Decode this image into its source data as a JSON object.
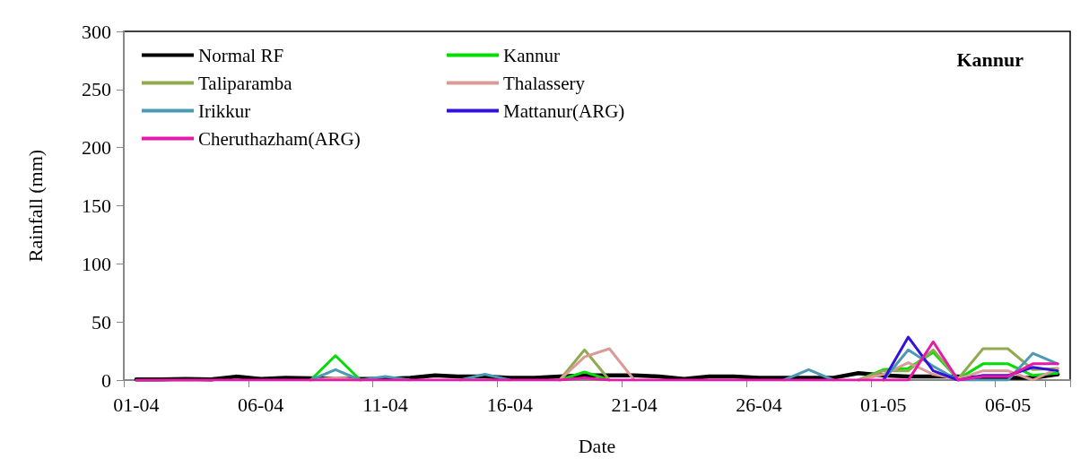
{
  "chart_data": {
    "type": "line",
    "title": "Kannur",
    "xlabel": "Date",
    "ylabel": "Rainfall (mm)",
    "categories": [
      "01-04",
      null,
      null,
      null,
      null,
      "06-04",
      null,
      null,
      null,
      null,
      "11-04",
      null,
      null,
      null,
      null,
      "16-04",
      null,
      null,
      null,
      null,
      "21-04",
      null,
      null,
      null,
      null,
      "26-04",
      null,
      null,
      null,
      null,
      "01-05",
      null,
      null,
      null,
      null,
      "06-05",
      null,
      null
    ],
    "ylim": [
      0,
      300
    ],
    "yticks": [
      0,
      50,
      100,
      150,
      200,
      250,
      300
    ],
    "grid": false,
    "legend": "top left",
    "marker": "none",
    "line_style": "solid",
    "series": [
      {
        "name": "Normal RF",
        "color": "#000000",
        "values": [
          0.5,
          0.5,
          1,
          0.5,
          3,
          1,
          2,
          1.5,
          1,
          1,
          1,
          2,
          4,
          3,
          3,
          2,
          2,
          3,
          4,
          4,
          4,
          3,
          1,
          3,
          3,
          2,
          2,
          2,
          2,
          6,
          4,
          3,
          3,
          3,
          2,
          2,
          2,
          5
        ]
      },
      {
        "name": "Kannur",
        "color": "#00dd00",
        "values": [
          null,
          null,
          null,
          null,
          null,
          null,
          null,
          0,
          21,
          0,
          null,
          null,
          null,
          null,
          null,
          null,
          null,
          0,
          7,
          0,
          null,
          null,
          null,
          null,
          null,
          null,
          null,
          null,
          null,
          0,
          9,
          10,
          24,
          1,
          14,
          14,
          4,
          6
        ]
      },
      {
        "name": "Taliparamba",
        "color": "#8faa4f",
        "values": [
          null,
          null,
          null,
          null,
          null,
          null,
          null,
          null,
          null,
          null,
          null,
          null,
          null,
          null,
          null,
          null,
          null,
          0,
          26,
          0,
          null,
          null,
          null,
          null,
          null,
          null,
          null,
          null,
          null,
          0,
          8,
          8,
          26,
          1,
          27,
          27,
          9,
          10
        ]
      },
      {
        "name": "Thalassery",
        "color": "#dc9a96",
        "values": [
          null,
          null,
          null,
          null,
          null,
          null,
          null,
          0,
          2,
          0,
          null,
          null,
          null,
          null,
          null,
          null,
          null,
          0,
          20,
          27,
          0,
          null,
          null,
          null,
          null,
          null,
          null,
          null,
          null,
          0,
          5,
          15,
          5,
          1,
          8,
          8,
          0,
          10
        ]
      },
      {
        "name": "Irikkur",
        "color": "#4a9ab4",
        "values": [
          null,
          null,
          null,
          null,
          null,
          null,
          null,
          0,
          9,
          0,
          3,
          0,
          null,
          0,
          5,
          0,
          null,
          null,
          null,
          null,
          null,
          null,
          null,
          null,
          null,
          null,
          0,
          9,
          0,
          null,
          0,
          26,
          12,
          0,
          0,
          0,
          23,
          14
        ]
      },
      {
        "name": "Mattanur(ARG)",
        "color": "#3311dd",
        "values": [
          null,
          null,
          null,
          null,
          null,
          null,
          null,
          null,
          null,
          null,
          null,
          null,
          null,
          null,
          null,
          null,
          null,
          null,
          null,
          null,
          null,
          null,
          null,
          null,
          null,
          null,
          null,
          null,
          null,
          null,
          0,
          37,
          8,
          0,
          4,
          4,
          11,
          8
        ]
      },
      {
        "name": "Cheruthazham(ARG)",
        "color": "#e619a8",
        "values": [
          0,
          0,
          0,
          0,
          0,
          0,
          0,
          0,
          0,
          0,
          0,
          0,
          0,
          0,
          0,
          0,
          0,
          0,
          2,
          0,
          0,
          0,
          0,
          0,
          0,
          0,
          0,
          0,
          0,
          0,
          0,
          0,
          33,
          0,
          3,
          3,
          14,
          14
        ]
      }
    ]
  }
}
